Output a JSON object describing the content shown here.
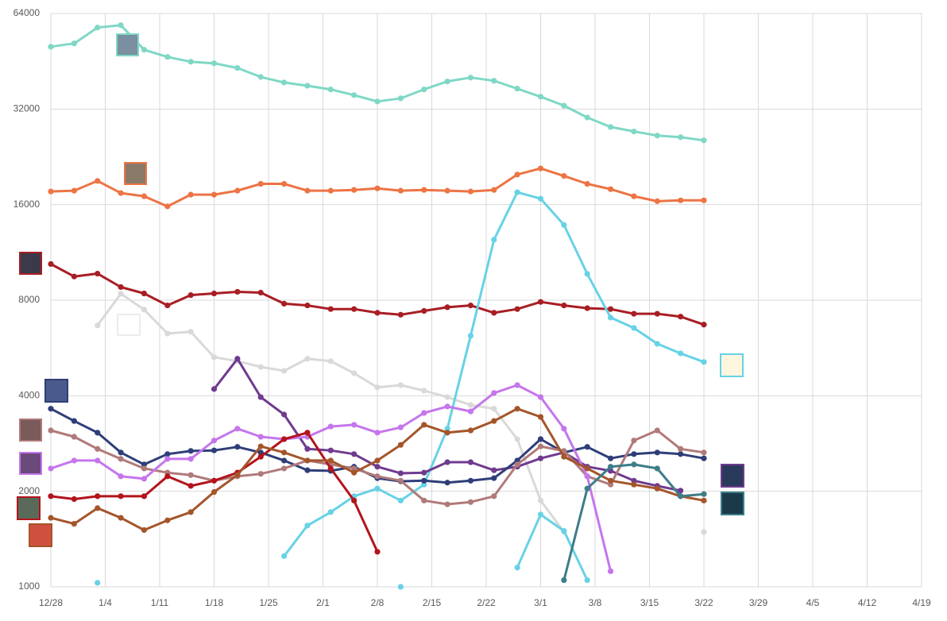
{
  "chart_data": {
    "type": "line",
    "log_scale": true,
    "grid": true,
    "xlim": [
      0,
      112
    ],
    "xticks": [
      {
        "value": 0,
        "label": "12/28"
      },
      {
        "value": 7,
        "label": "1/4"
      },
      {
        "value": 14,
        "label": "1/11"
      },
      {
        "value": 21,
        "label": "1/18"
      },
      {
        "value": 28,
        "label": "1/25"
      },
      {
        "value": 35,
        "label": "2/1"
      },
      {
        "value": 42,
        "label": "2/8"
      },
      {
        "value": 49,
        "label": "2/15"
      },
      {
        "value": 56,
        "label": "2/22"
      },
      {
        "value": 63,
        "label": "3/1"
      },
      {
        "value": 70,
        "label": "3/8"
      },
      {
        "value": 77,
        "label": "3/15"
      },
      {
        "value": 84,
        "label": "3/22"
      },
      {
        "value": 91,
        "label": "3/29"
      },
      {
        "value": 98,
        "label": "4/5"
      },
      {
        "value": 105,
        "label": "4/12"
      },
      {
        "value": 112,
        "label": "4/19"
      }
    ],
    "ylim": [
      1000,
      64000
    ],
    "yticks": [
      1000,
      2000,
      4000,
      8000,
      16000,
      32000,
      64000
    ],
    "x": [
      0,
      3,
      6,
      9,
      12,
      15,
      18,
      21,
      24,
      27,
      30,
      33,
      36,
      39,
      42,
      45,
      48,
      51,
      54,
      57,
      60,
      63,
      66,
      69,
      72,
      75,
      78,
      81,
      84
    ],
    "series": [
      {
        "color": "#7fd8c5",
        "values": [
          50300,
          51500,
          57800,
          58800,
          49200,
          46700,
          45100,
          44600,
          43100,
          40400,
          38800,
          37900,
          36900,
          35400,
          33800,
          34600,
          36900,
          39100,
          40200,
          39300,
          37100,
          35000,
          32800,
          30100,
          28100,
          27200,
          26400,
          26100,
          25500
        ]
      },
      {
        "color": "#ed7444",
        "values": [
          17600,
          17700,
          19000,
          17400,
          17000,
          15800,
          17200,
          17200,
          17700,
          18600,
          18600,
          17700,
          17700,
          17800,
          18000,
          17700,
          17800,
          17700,
          17600,
          17800,
          19900,
          20800,
          19700,
          18600,
          17900,
          17000,
          16400,
          16500,
          16500
        ]
      },
      {
        "color": "#a81e24",
        "values": [
          10400,
          9500,
          9700,
          8800,
          8400,
          7700,
          8300,
          8400,
          8500,
          8450,
          7800,
          7700,
          7500,
          7500,
          7300,
          7200,
          7400,
          7600,
          7700,
          7300,
          7500,
          7900,
          7700,
          7550,
          7500,
          7250,
          7250,
          7100,
          6700
        ]
      },
      {
        "color": "#d9d9d9",
        "values": [
          null,
          null,
          6660,
          8380,
          7470,
          6280,
          6360,
          5290,
          5140,
          4930,
          4790,
          5230,
          5140,
          4710,
          4250,
          4320,
          4150,
          3960,
          3740,
          3640,
          2920,
          1870,
          1490,
          null,
          null,
          null,
          null,
          null,
          1490
        ]
      },
      {
        "color": "#67d2e6",
        "values": [
          null,
          null,
          1030,
          null,
          null,
          null,
          null,
          null,
          null,
          null,
          1250,
          1560,
          1720,
          1930,
          2040,
          1870,
          2100,
          3150,
          6180,
          12400,
          17500,
          16700,
          13800,
          9680,
          7050,
          6540,
          5830,
          5440,
          5110
        ]
      },
      {
        "color": "#67d2e6",
        "values": [
          null,
          null,
          null,
          null,
          null,
          null,
          null,
          null,
          null,
          null,
          null,
          null,
          null,
          null,
          null,
          1000,
          null,
          null,
          null,
          null,
          1150,
          1690,
          1500,
          1050,
          null,
          null,
          null,
          null,
          null
        ]
      },
      {
        "color": "#6f3b8f",
        "values": [
          null,
          null,
          null,
          null,
          null,
          null,
          null,
          4200,
          5230,
          3960,
          3490,
          2720,
          2690,
          2620,
          2390,
          2280,
          2290,
          2470,
          2470,
          2330,
          2390,
          2540,
          2650,
          2390,
          2320,
          2160,
          2080,
          2010,
          null
        ]
      },
      {
        "color": "#2f3e78",
        "values": [
          3640,
          3330,
          3060,
          2650,
          2430,
          2620,
          2680,
          2690,
          2760,
          2650,
          2500,
          2330,
          2320,
          2390,
          2200,
          2150,
          2160,
          2130,
          2160,
          2200,
          2500,
          2920,
          2650,
          2760,
          2540,
          2620,
          2650,
          2620,
          2540
        ]
      },
      {
        "color": "#b07a7a",
        "values": [
          3110,
          2970,
          2720,
          2530,
          2360,
          2290,
          2250,
          2160,
          2230,
          2270,
          2360,
          2500,
          2430,
          2360,
          2230,
          2160,
          1870,
          1820,
          1850,
          1930,
          2430,
          2770,
          2680,
          2230,
          2100,
          2890,
          3110,
          2720,
          2650
        ]
      },
      {
        "color": "#c576ec",
        "values": [
          2360,
          2500,
          2500,
          2230,
          2190,
          2530,
          2530,
          2890,
          3150,
          2970,
          2920,
          2970,
          3200,
          3240,
          3060,
          3180,
          3530,
          3700,
          3570,
          4080,
          4320,
          3960,
          3150,
          2230,
          1120,
          null,
          null,
          null,
          null
        ]
      },
      {
        "color": "#b3141b",
        "values": [
          1930,
          1890,
          1930,
          1930,
          1930,
          2230,
          2080,
          2160,
          2290,
          2570,
          2920,
          3060,
          2360,
          1870,
          1290,
          null,
          null,
          null,
          null,
          null,
          null,
          null,
          null,
          null,
          null,
          null,
          null,
          null,
          null
        ]
      },
      {
        "color": "#a5552a",
        "values": [
          1650,
          1580,
          1770,
          1650,
          1510,
          1620,
          1720,
          1990,
          2250,
          2770,
          2650,
          2500,
          2500,
          2290,
          2500,
          2800,
          3240,
          3060,
          3110,
          3330,
          3640,
          3430,
          2570,
          2360,
          2160,
          2100,
          2040,
          1930,
          1870
        ]
      },
      {
        "color": "#3d7d88",
        "values": [
          null,
          null,
          null,
          null,
          null,
          null,
          null,
          null,
          null,
          null,
          null,
          null,
          null,
          null,
          null,
          null,
          null,
          null,
          null,
          null,
          null,
          null,
          1050,
          2040,
          2390,
          2430,
          2360,
          1930,
          1960
        ]
      }
    ]
  }
}
